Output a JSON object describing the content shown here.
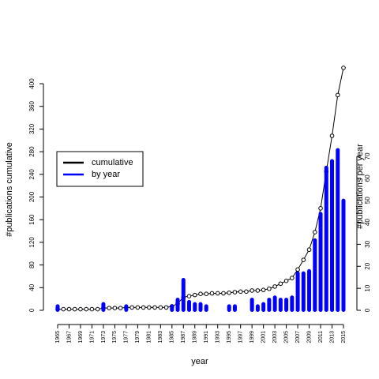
{
  "chart_data": {
    "type": "combo",
    "x_label": "year",
    "y_label": "#publications cumulative",
    "y2_label": "#publications per year",
    "x": [
      1965,
      1966,
      1967,
      1968,
      1969,
      1970,
      1971,
      1972,
      1973,
      1974,
      1975,
      1976,
      1977,
      1978,
      1979,
      1980,
      1981,
      1982,
      1983,
      1984,
      1985,
      1986,
      1987,
      1988,
      1989,
      1990,
      1991,
      1992,
      1993,
      1994,
      1995,
      1996,
      1997,
      1998,
      1999,
      2000,
      2001,
      2002,
      2003,
      2004,
      2005,
      2006,
      2007,
      2008,
      2009,
      2010,
      2011,
      2012,
      2013,
      2014,
      2015
    ],
    "series": [
      {
        "name": "cumulative",
        "type": "line",
        "color": "#000000",
        "axis": "y",
        "values": [
          2,
          2,
          2,
          2,
          2,
          2,
          2,
          2,
          4,
          4,
          4,
          4,
          5,
          5,
          5,
          5,
          5,
          5,
          5,
          5,
          7,
          12,
          23,
          25,
          27,
          29,
          29,
          30,
          30,
          30,
          31,
          32,
          33,
          33,
          35,
          35,
          36,
          38,
          42,
          47,
          52,
          57,
          72,
          89,
          107,
          138,
          180,
          245,
          308,
          380,
          428
        ]
      },
      {
        "name": "by year",
        "type": "bar",
        "color": "#0000ff",
        "axis": "y2",
        "values": [
          2,
          null,
          null,
          null,
          null,
          null,
          null,
          null,
          3,
          null,
          null,
          null,
          2,
          null,
          null,
          null,
          null,
          null,
          null,
          null,
          2,
          5,
          14,
          4,
          3,
          3,
          2,
          null,
          null,
          null,
          2,
          2,
          null,
          null,
          5,
          2,
          3,
          5,
          6,
          5,
          5,
          6,
          17,
          17,
          18,
          32,
          44,
          65,
          68,
          73,
          50
        ]
      }
    ],
    "xlim": [
      1965,
      2015
    ],
    "xticks": [
      1965,
      1967,
      1969,
      1971,
      1973,
      1975,
      1977,
      1979,
      1981,
      1983,
      1985,
      1987,
      1989,
      1991,
      1993,
      1995,
      1997,
      1999,
      2001,
      2003,
      2005,
      2007,
      2009,
      2011,
      2013,
      2015
    ],
    "ylim": [
      0,
      430
    ],
    "yticks": [
      0,
      40,
      80,
      120,
      160,
      200,
      240,
      280,
      320,
      360,
      400
    ],
    "y2lim": [
      0,
      110.7
    ],
    "y2ticks": [
      0,
      10,
      20,
      30,
      40,
      50,
      60,
      70
    ],
    "legend": "left"
  }
}
